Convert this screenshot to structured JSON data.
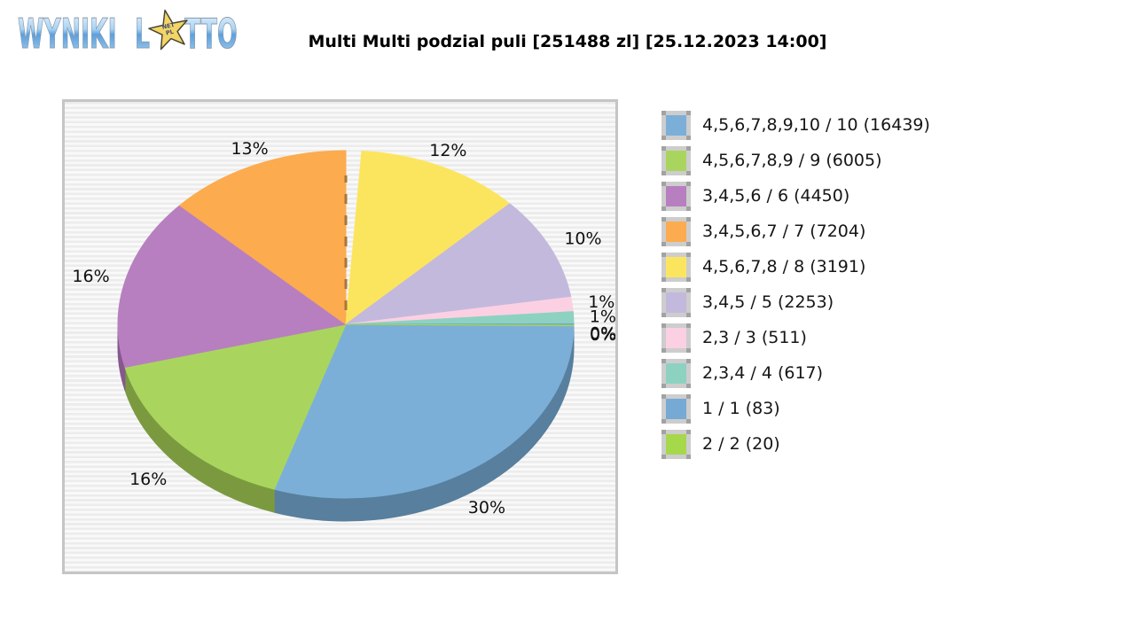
{
  "logo": {
    "word1": "WYNIKI",
    "word2_prefix": "L",
    "word2_suffix": "TTO",
    "star_text_line1": "NET",
    "star_text_line2": "PL",
    "star_color": "#f2d566",
    "letter_color_top": "#a9d3f2",
    "letter_color_bottom": "#5d9fdc"
  },
  "header": {
    "title": "Multi Multi podzial puli [251488 zl] [25.12.2023 14:00]"
  },
  "chart_data": {
    "type": "pie",
    "style": "3d-exploded",
    "title": "Multi Multi podzial puli [251488 zl] [25.12.2023 14:00]",
    "pool_total_label": "251488 zl",
    "draw_datetime": "25.12.2023 14:00",
    "legend_position": "right",
    "grid": "horizontal-stripes",
    "slices": [
      {
        "label": "4,5,6,7,8,9,10 / 10 (16439)",
        "combination": "4,5,6,7,8,9,10",
        "hits": "10",
        "winners": 16439,
        "percent": 30,
        "percent_label": "30%",
        "color": "#7bafd8",
        "side_color": "#587f9d",
        "start_deg": 90.5,
        "end_deg": 198.3,
        "detached": false
      },
      {
        "label": "4,5,6,7,8,9 / 9 (6005)",
        "combination": "4,5,6,7,8,9",
        "hits": "9",
        "winners": 6005,
        "percent": 16,
        "percent_label": "16%",
        "color": "#a9d55e",
        "side_color": "#7b9a40",
        "start_deg": 198.3,
        "end_deg": 255.7,
        "detached": false
      },
      {
        "label": "3,4,5,6 / 6 (4450)",
        "combination": "3,4,5,6",
        "hits": "6",
        "winners": 4450,
        "percent": 16,
        "percent_label": "16%",
        "color": "#b77fc0",
        "side_color": "#86588d",
        "start_deg": 255.7,
        "end_deg": 313.2,
        "detached": false
      },
      {
        "label": "3,4,5,6,7 / 7 (7204)",
        "combination": "3,4,5,6,7",
        "hits": "7",
        "winners": 7204,
        "percent": 13,
        "percent_label": "13%",
        "color": "#fcab4f",
        "side_color": "#b5772f",
        "start_deg": 313.2,
        "end_deg": 360,
        "detached": false
      },
      {
        "label": "4,5,6,7,8 / 8 (3191)",
        "combination": "4,5,6,7,8",
        "hits": "8",
        "winners": 3191,
        "percent": 12,
        "percent_label": "12%",
        "color": "#fce55e",
        "side_color": "#b8a53a",
        "start_deg": 4,
        "end_deg": 46,
        "detached": true
      },
      {
        "label": "3,4,5 / 5 (2253)",
        "combination": "3,4,5",
        "hits": "5",
        "winners": 2253,
        "percent": 10,
        "percent_label": "10%",
        "color": "#c3b9dc",
        "side_color": "#8d85a3",
        "start_deg": 46,
        "end_deg": 81,
        "detached": false
      },
      {
        "label": "2,3 / 3 (511)",
        "combination": "2,3",
        "hits": "3",
        "winners": 511,
        "percent": 1,
        "percent_label": "1%",
        "color": "#fcd0e3",
        "side_color": "#b895a5",
        "start_deg": 81,
        "end_deg": 85.8,
        "detached": false
      },
      {
        "label": "2,3,4 / 4 (617)",
        "combination": "2,3,4",
        "hits": "4",
        "winners": 617,
        "percent": 1,
        "percent_label": "1%",
        "color": "#8dd2c0",
        "side_color": "#629a8b",
        "start_deg": 85.8,
        "end_deg": 89.8,
        "detached": false
      },
      {
        "label": "1 / 1 (83)",
        "combination": "1",
        "hits": "1",
        "winners": 83,
        "percent": 0,
        "percent_label": "0%",
        "color": "#76a9d3",
        "side_color": "#547c9c",
        "start_deg": 89.8,
        "end_deg": 90.35,
        "detached": false
      },
      {
        "label": "2 / 2 (20)",
        "combination": "2",
        "hits": "2",
        "winners": 20,
        "percent": 0,
        "percent_label": "0%",
        "color": "#a6d84b",
        "side_color": "#789e33",
        "start_deg": 90.35,
        "end_deg": 90.5,
        "detached": false
      }
    ],
    "detached_gap": {
      "start_deg": 0,
      "end_deg": 4,
      "dashed_edge_color": "#a9763b"
    }
  }
}
